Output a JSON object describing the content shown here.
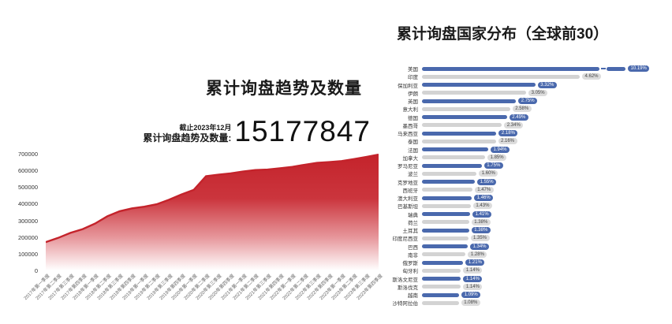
{
  "left_chart": {
    "title": "累计询盘趋势及数量",
    "asof_label": "截止2023年12月",
    "stat_label": "累计询盘趋势及数量:",
    "stat_value": "15177847"
  },
  "right_chart": {
    "title": "累计询盘国家分布（全球前30）"
  },
  "colors": {
    "area_red": "#c4232b",
    "bar_blue": "#4a69ad",
    "bar_gray": "#d3d3d3"
  },
  "chart_data": [
    {
      "type": "area",
      "title": "累计询盘趋势及数量",
      "xlabel": "",
      "ylabel": "",
      "ylim": [
        0,
        700000
      ],
      "yticks": [
        0,
        100000,
        200000,
        300000,
        400000,
        500000,
        600000,
        700000
      ],
      "grid": false,
      "line_color": "#c4232b",
      "fill_gradient": [
        "#c4232b",
        "#ffffff"
      ],
      "x": [
        "2017年第一季度",
        "2017年第二季度",
        "2017年第三季度",
        "2017年第四季度",
        "2018年第一季度",
        "2018年第二季度",
        "2018年第三季度",
        "2018年第四季度",
        "2019年第一季度",
        "2019年第二季度",
        "2019年第三季度",
        "2019年第四季度",
        "2020年第一季度",
        "2020年第二季度",
        "2020年第三季度",
        "2020年第四季度",
        "2021年第一季度",
        "2021年第二季度",
        "2021年第三季度",
        "2021年第四季度",
        "2022年第一季度",
        "2022年第二季度",
        "2022年第三季度",
        "2022年第四季度",
        "2023年第一季度",
        "2023年第二季度",
        "2023年第三季度",
        "2023年第四季度"
      ],
      "values": [
        170000,
        195000,
        225000,
        248000,
        281000,
        325000,
        355000,
        372000,
        382000,
        397000,
        424000,
        455000,
        483000,
        565000,
        574000,
        582000,
        593000,
        602000,
        605000,
        613000,
        621000,
        634000,
        645000,
        650000,
        656000,
        668000,
        681000,
        695000
      ]
    },
    {
      "type": "bar",
      "orientation": "horizontal",
      "title": "累计询盘国家分布（全球前30）",
      "legend": null,
      "grid": false,
      "first_bar_truncated": true,
      "alternating_colors": [
        "#4a69ad",
        "#d3d3d3"
      ],
      "categories": [
        "美国",
        "印度",
        "保加利亚",
        "伊朗",
        "英国",
        "意大利",
        "德国",
        "墨西哥",
        "马来西亚",
        "泰国",
        "法国",
        "加拿大",
        "罗马尼亚",
        "波兰",
        "克罗地亚",
        "西班牙",
        "澳大利亚",
        "巴基斯坦",
        "瑞典",
        "荷兰",
        "土耳其",
        "印度尼西亚",
        "巴西",
        "南非",
        "俄罗斯",
        "匈牙利",
        "斯洛文尼亚",
        "斯洛伐克",
        "越南",
        "沙特阿拉伯"
      ],
      "values": [
        10.19,
        4.62,
        3.32,
        3.05,
        2.75,
        2.58,
        2.49,
        2.34,
        2.18,
        2.16,
        1.94,
        1.85,
        1.75,
        1.6,
        1.55,
        1.47,
        1.46,
        1.43,
        1.41,
        1.38,
        1.38,
        1.35,
        1.34,
        1.28,
        1.21,
        1.14,
        1.14,
        1.14,
        1.09,
        1.08
      ],
      "labels": [
        "10.19%",
        "4.62%",
        "3.32%",
        "3.05%",
        "2.75%",
        "2.58%",
        "2.49%",
        "2.34%",
        "2.18%",
        "2.16%",
        "1.94%",
        "1.85%",
        "1.75%",
        "1.60%",
        "1.55%",
        "1.47%",
        "1.46%",
        "1.43%",
        "1.41%",
        "1.38%",
        "1.38%",
        "1.35%",
        "1.34%",
        "1.28%",
        "1.21%",
        "1.14%",
        "1.14%",
        "1.14%",
        "1.09%",
        "1.08%"
      ]
    }
  ]
}
